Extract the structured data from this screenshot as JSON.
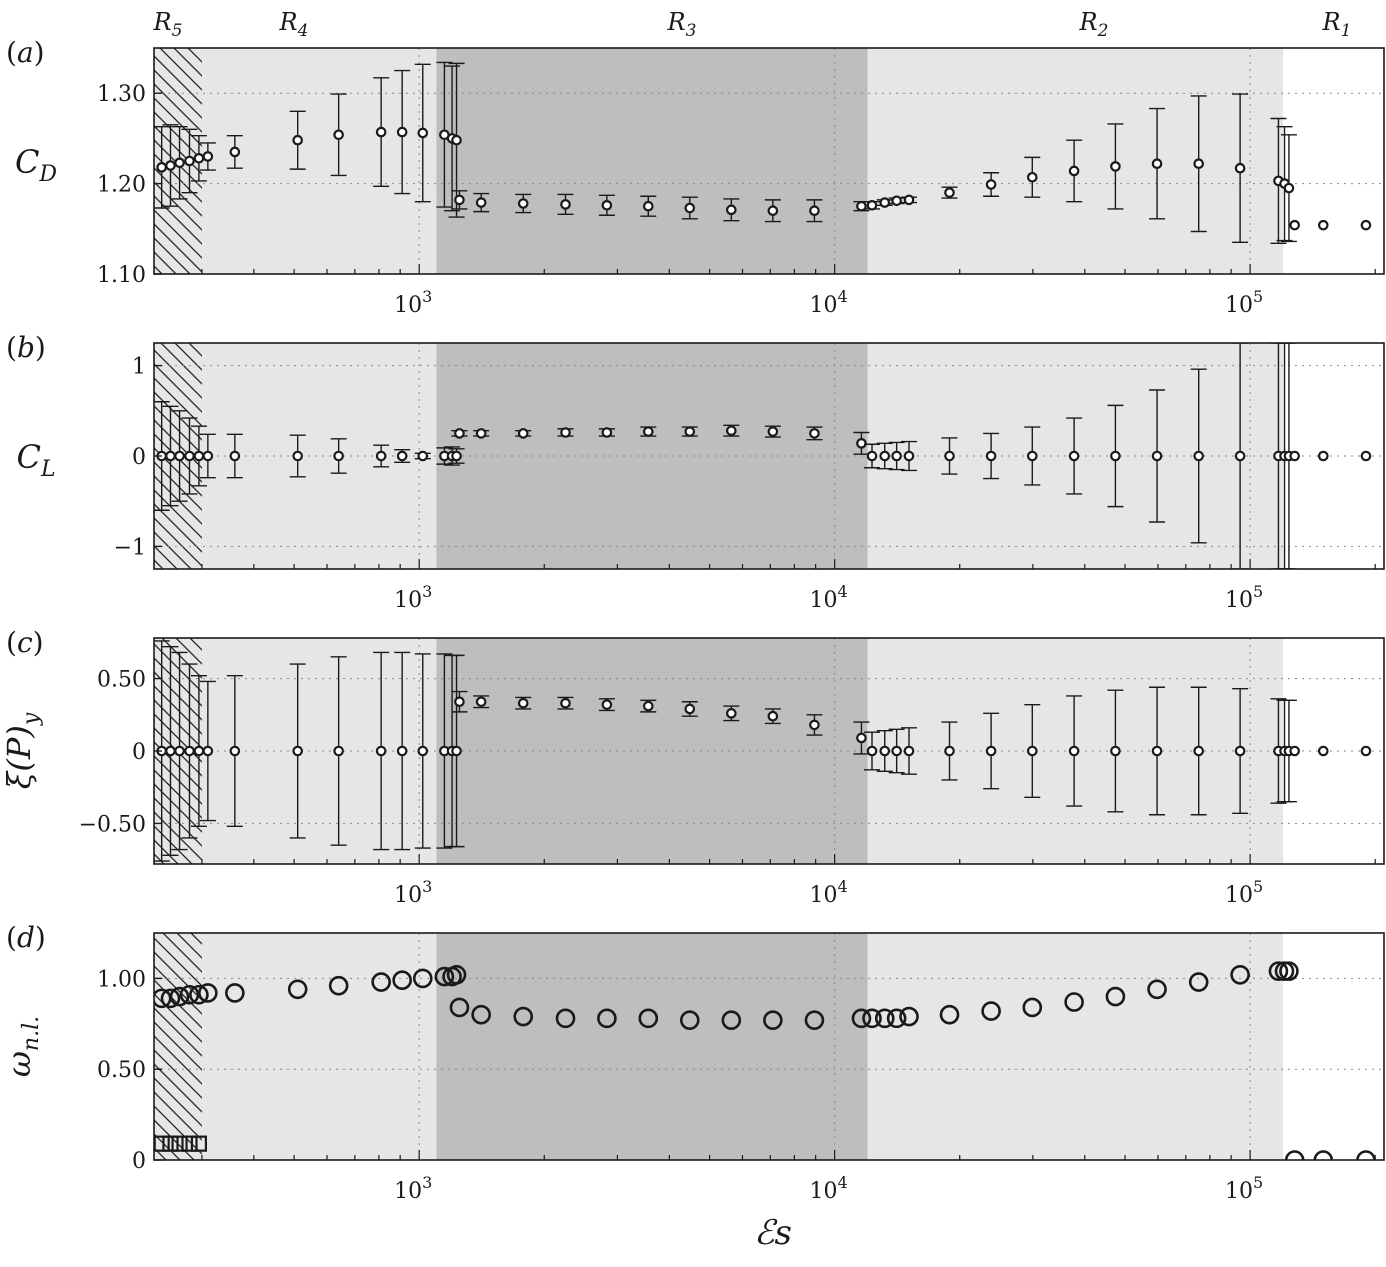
{
  "figure": {
    "regions": [
      "R5",
      "R4",
      "R3",
      "R2",
      "R1"
    ],
    "shared_xlabel": "ℰs",
    "x_tick_labels": [
      "10^3",
      "10^4",
      "10^5"
    ]
  },
  "chart_data": [
    {
      "type": "scatter",
      "panel_label": "(a)",
      "ylabel": "C_D",
      "x_scale": "log",
      "ylim": [
        1.1,
        1.35
      ],
      "yticks": [
        1.1,
        1.2,
        1.3
      ],
      "ytick_labels": [
        "1.10",
        "1.20",
        "1.30"
      ],
      "grid": true,
      "region_boundaries": [
        1100,
        12000,
        120000
      ],
      "hatched_region": [
        230,
        300
      ],
      "points": [
        {
          "x": 240,
          "y": 1.218,
          "err": 0.045
        },
        {
          "x": 252,
          "y": 1.22,
          "err": 0.045
        },
        {
          "x": 265,
          "y": 1.223,
          "err": 0.04
        },
        {
          "x": 280,
          "y": 1.225,
          "err": 0.035
        },
        {
          "x": 295,
          "y": 1.228,
          "err": 0.025
        },
        {
          "x": 310,
          "y": 1.23,
          "err": 0.015
        },
        {
          "x": 360,
          "y": 1.235,
          "err": 0.018
        },
        {
          "x": 510,
          "y": 1.248,
          "err": 0.032
        },
        {
          "x": 640,
          "y": 1.254,
          "err": 0.045
        },
        {
          "x": 810,
          "y": 1.257,
          "err": 0.06
        },
        {
          "x": 910,
          "y": 1.257,
          "err": 0.068
        },
        {
          "x": 1020,
          "y": 1.256,
          "err": 0.076
        },
        {
          "x": 1150,
          "y": 1.254,
          "err": 0.08
        },
        {
          "x": 1200,
          "y": 1.25,
          "err": 0.08
        },
        {
          "x": 1230,
          "y": 1.248,
          "err": 0.085
        },
        {
          "x": 1250,
          "y": 1.182,
          "err": 0.01
        },
        {
          "x": 1410,
          "y": 1.179,
          "err": 0.01
        },
        {
          "x": 1780,
          "y": 1.178,
          "err": 0.01
        },
        {
          "x": 2250,
          "y": 1.177,
          "err": 0.011
        },
        {
          "x": 2830,
          "y": 1.176,
          "err": 0.011
        },
        {
          "x": 3560,
          "y": 1.175,
          "err": 0.011
        },
        {
          "x": 4480,
          "y": 1.173,
          "err": 0.012
        },
        {
          "x": 5640,
          "y": 1.171,
          "err": 0.012
        },
        {
          "x": 7100,
          "y": 1.17,
          "err": 0.012
        },
        {
          "x": 8940,
          "y": 1.17,
          "err": 0.012
        },
        {
          "x": 11600,
          "y": 1.175,
          "err": 0.005
        },
        {
          "x": 12300,
          "y": 1.176,
          "err": 0.004
        },
        {
          "x": 13200,
          "y": 1.179,
          "err": 0.003
        },
        {
          "x": 14100,
          "y": 1.181,
          "err": 0.003
        },
        {
          "x": 15100,
          "y": 1.182,
          "err": 0.003
        },
        {
          "x": 18900,
          "y": 1.19,
          "err": 0.006
        },
        {
          "x": 23800,
          "y": 1.199,
          "err": 0.013
        },
        {
          "x": 29900,
          "y": 1.207,
          "err": 0.022
        },
        {
          "x": 37700,
          "y": 1.214,
          "err": 0.034
        },
        {
          "x": 47400,
          "y": 1.219,
          "err": 0.047
        },
        {
          "x": 59700,
          "y": 1.222,
          "err": 0.061
        },
        {
          "x": 75200,
          "y": 1.222,
          "err": 0.075
        },
        {
          "x": 94600,
          "y": 1.217,
          "err": 0.082
        },
        {
          "x": 117000,
          "y": 1.203,
          "err": 0.069
        },
        {
          "x": 121000,
          "y": 1.2,
          "err": 0.063
        },
        {
          "x": 124000,
          "y": 1.195,
          "err": 0.059
        },
        {
          "x": 128000,
          "y": 1.154,
          "err": 0
        },
        {
          "x": 150000,
          "y": 1.154,
          "err": 0
        },
        {
          "x": 190000,
          "y": 1.154,
          "err": 0
        }
      ]
    },
    {
      "type": "scatter",
      "panel_label": "(b)",
      "ylabel": "C_L",
      "x_scale": "log",
      "ylim": [
        -1.25,
        1.25
      ],
      "yticks": [
        -1,
        0,
        1
      ],
      "ytick_labels": [
        "−1",
        "0",
        "1"
      ],
      "grid": true,
      "points": [
        {
          "x": 240,
          "y": 0,
          "err": 0.6
        },
        {
          "x": 252,
          "y": 0,
          "err": 0.55
        },
        {
          "x": 265,
          "y": 0,
          "err": 0.5
        },
        {
          "x": 280,
          "y": 0,
          "err": 0.42
        },
        {
          "x": 295,
          "y": 0,
          "err": 0.33
        },
        {
          "x": 310,
          "y": 0,
          "err": 0.24
        },
        {
          "x": 360,
          "y": 0,
          "err": 0.24
        },
        {
          "x": 510,
          "y": 0,
          "err": 0.23
        },
        {
          "x": 640,
          "y": 0,
          "err": 0.19
        },
        {
          "x": 810,
          "y": 0,
          "err": 0.12
        },
        {
          "x": 910,
          "y": 0,
          "err": 0.07
        },
        {
          "x": 1020,
          "y": 0,
          "err": 0.03
        },
        {
          "x": 1150,
          "y": 0,
          "err": 0.09
        },
        {
          "x": 1200,
          "y": 0,
          "err": 0.1
        },
        {
          "x": 1230,
          "y": 0,
          "err": 0.08
        },
        {
          "x": 1250,
          "y": 0.25,
          "err": 0.03
        },
        {
          "x": 1410,
          "y": 0.25,
          "err": 0.03
        },
        {
          "x": 1780,
          "y": 0.25,
          "err": 0.03
        },
        {
          "x": 2250,
          "y": 0.26,
          "err": 0.04
        },
        {
          "x": 2830,
          "y": 0.26,
          "err": 0.04
        },
        {
          "x": 3560,
          "y": 0.27,
          "err": 0.05
        },
        {
          "x": 4480,
          "y": 0.27,
          "err": 0.05
        },
        {
          "x": 5640,
          "y": 0.28,
          "err": 0.06
        },
        {
          "x": 7100,
          "y": 0.27,
          "err": 0.06
        },
        {
          "x": 8940,
          "y": 0.25,
          "err": 0.07
        },
        {
          "x": 11600,
          "y": 0.14,
          "err": 0.12
        },
        {
          "x": 12300,
          "y": 0,
          "err": 0.13
        },
        {
          "x": 13200,
          "y": 0,
          "err": 0.14
        },
        {
          "x": 14100,
          "y": 0,
          "err": 0.15
        },
        {
          "x": 15100,
          "y": 0,
          "err": 0.16
        },
        {
          "x": 18900,
          "y": 0,
          "err": 0.2
        },
        {
          "x": 23800,
          "y": 0,
          "err": 0.25
        },
        {
          "x": 29900,
          "y": 0,
          "err": 0.32
        },
        {
          "x": 37700,
          "y": 0,
          "err": 0.42
        },
        {
          "x": 47400,
          "y": 0,
          "err": 0.56
        },
        {
          "x": 59700,
          "y": 0,
          "err": 0.73
        },
        {
          "x": 75200,
          "y": 0,
          "err": 0.96
        },
        {
          "x": 94600,
          "y": 0,
          "err": 1.25
        },
        {
          "x": 117000,
          "y": 0,
          "err": 1.25
        },
        {
          "x": 121000,
          "y": 0,
          "err": 1.25
        },
        {
          "x": 124000,
          "y": 0,
          "err": 1.25
        },
        {
          "x": 128000,
          "y": 0,
          "err": 0
        },
        {
          "x": 150000,
          "y": 0,
          "err": 0
        },
        {
          "x": 190000,
          "y": 0,
          "err": 0
        }
      ]
    },
    {
      "type": "scatter",
      "panel_label": "(c)",
      "ylabel": "ξ(P)_y",
      "x_scale": "log",
      "ylim": [
        -0.78,
        0.78
      ],
      "yticks": [
        -0.5,
        0,
        0.5
      ],
      "ytick_labels": [
        "−0.50",
        "0",
        "0.50"
      ],
      "grid": true,
      "points": [
        {
          "x": 240,
          "y": 0,
          "err": 0.76
        },
        {
          "x": 252,
          "y": 0,
          "err": 0.72
        },
        {
          "x": 265,
          "y": 0,
          "err": 0.68
        },
        {
          "x": 280,
          "y": 0,
          "err": 0.6
        },
        {
          "x": 295,
          "y": 0,
          "err": 0.52
        },
        {
          "x": 310,
          "y": 0,
          "err": 0.48
        },
        {
          "x": 360,
          "y": 0,
          "err": 0.52
        },
        {
          "x": 510,
          "y": 0,
          "err": 0.6
        },
        {
          "x": 640,
          "y": 0,
          "err": 0.65
        },
        {
          "x": 810,
          "y": 0,
          "err": 0.68
        },
        {
          "x": 910,
          "y": 0,
          "err": 0.68
        },
        {
          "x": 1020,
          "y": 0,
          "err": 0.67
        },
        {
          "x": 1150,
          "y": 0,
          "err": 0.67
        },
        {
          "x": 1200,
          "y": 0,
          "err": 0.66
        },
        {
          "x": 1230,
          "y": 0,
          "err": 0.66
        },
        {
          "x": 1250,
          "y": 0.34,
          "err": 0.07
        },
        {
          "x": 1410,
          "y": 0.34,
          "err": 0.04
        },
        {
          "x": 1780,
          "y": 0.33,
          "err": 0.04
        },
        {
          "x": 2250,
          "y": 0.33,
          "err": 0.04
        },
        {
          "x": 2830,
          "y": 0.32,
          "err": 0.04
        },
        {
          "x": 3560,
          "y": 0.31,
          "err": 0.04
        },
        {
          "x": 4480,
          "y": 0.29,
          "err": 0.05
        },
        {
          "x": 5640,
          "y": 0.26,
          "err": 0.05
        },
        {
          "x": 7100,
          "y": 0.24,
          "err": 0.05
        },
        {
          "x": 8940,
          "y": 0.18,
          "err": 0.07
        },
        {
          "x": 11600,
          "y": 0.09,
          "err": 0.11
        },
        {
          "x": 12300,
          "y": 0,
          "err": 0.13
        },
        {
          "x": 13200,
          "y": 0,
          "err": 0.14
        },
        {
          "x": 14100,
          "y": 0,
          "err": 0.15
        },
        {
          "x": 15100,
          "y": 0,
          "err": 0.16
        },
        {
          "x": 18900,
          "y": 0,
          "err": 0.2
        },
        {
          "x": 23800,
          "y": 0,
          "err": 0.26
        },
        {
          "x": 29900,
          "y": 0,
          "err": 0.32
        },
        {
          "x": 37700,
          "y": 0,
          "err": 0.38
        },
        {
          "x": 47400,
          "y": 0,
          "err": 0.42
        },
        {
          "x": 59700,
          "y": 0,
          "err": 0.44
        },
        {
          "x": 75200,
          "y": 0,
          "err": 0.44
        },
        {
          "x": 94600,
          "y": 0,
          "err": 0.43
        },
        {
          "x": 117000,
          "y": 0,
          "err": 0.36
        },
        {
          "x": 121000,
          "y": 0,
          "err": 0.35
        },
        {
          "x": 124000,
          "y": 0,
          "err": 0.35
        },
        {
          "x": 128000,
          "y": 0,
          "err": 0
        },
        {
          "x": 150000,
          "y": 0,
          "err": 0
        },
        {
          "x": 190000,
          "y": 0,
          "err": 0
        }
      ]
    },
    {
      "type": "scatter",
      "panel_label": "(d)",
      "ylabel": "ω_n.l.",
      "x_scale": "log",
      "ylim": [
        0,
        1.25
      ],
      "yticks": [
        0,
        0.5,
        1.0
      ],
      "ytick_labels": [
        "0",
        "0.50",
        "1.00"
      ],
      "grid": true,
      "circles": [
        {
          "x": 240,
          "y": 0.89
        },
        {
          "x": 252,
          "y": 0.89
        },
        {
          "x": 265,
          "y": 0.9
        },
        {
          "x": 280,
          "y": 0.91
        },
        {
          "x": 295,
          "y": 0.91
        },
        {
          "x": 310,
          "y": 0.92
        },
        {
          "x": 360,
          "y": 0.92
        },
        {
          "x": 510,
          "y": 0.94
        },
        {
          "x": 640,
          "y": 0.96
        },
        {
          "x": 810,
          "y": 0.98
        },
        {
          "x": 910,
          "y": 0.99
        },
        {
          "x": 1020,
          "y": 1.0
        },
        {
          "x": 1150,
          "y": 1.01
        },
        {
          "x": 1200,
          "y": 1.01
        },
        {
          "x": 1230,
          "y": 1.02
        },
        {
          "x": 1250,
          "y": 0.84
        },
        {
          "x": 1410,
          "y": 0.8
        },
        {
          "x": 1780,
          "y": 0.79
        },
        {
          "x": 2250,
          "y": 0.78
        },
        {
          "x": 2830,
          "y": 0.78
        },
        {
          "x": 3560,
          "y": 0.78
        },
        {
          "x": 4480,
          "y": 0.77
        },
        {
          "x": 5640,
          "y": 0.77
        },
        {
          "x": 7100,
          "y": 0.77
        },
        {
          "x": 8940,
          "y": 0.77
        },
        {
          "x": 11600,
          "y": 0.78
        },
        {
          "x": 12300,
          "y": 0.78
        },
        {
          "x": 13200,
          "y": 0.78
        },
        {
          "x": 14100,
          "y": 0.78
        },
        {
          "x": 15100,
          "y": 0.79
        },
        {
          "x": 18900,
          "y": 0.8
        },
        {
          "x": 23800,
          "y": 0.82
        },
        {
          "x": 29900,
          "y": 0.84
        },
        {
          "x": 37700,
          "y": 0.87
        },
        {
          "x": 47400,
          "y": 0.9
        },
        {
          "x": 59700,
          "y": 0.94
        },
        {
          "x": 75200,
          "y": 0.98
        },
        {
          "x": 94600,
          "y": 1.02
        },
        {
          "x": 117000,
          "y": 1.04
        },
        {
          "x": 121000,
          "y": 1.04
        },
        {
          "x": 124000,
          "y": 1.04
        },
        {
          "x": 128000,
          "y": 0
        },
        {
          "x": 150000,
          "y": 0
        },
        {
          "x": 190000,
          "y": 0
        }
      ],
      "squares": [
        {
          "x": 240,
          "y": 0.09
        },
        {
          "x": 252,
          "y": 0.09
        },
        {
          "x": 265,
          "y": 0.09
        },
        {
          "x": 280,
          "y": 0.09
        },
        {
          "x": 295,
          "y": 0.09
        }
      ]
    }
  ]
}
